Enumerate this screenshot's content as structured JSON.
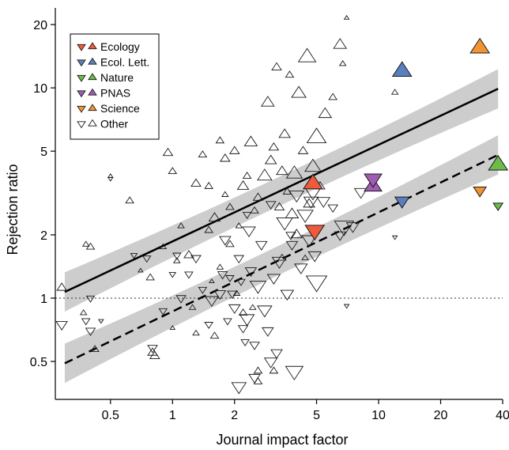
{
  "chart_data": {
    "type": "scatter",
    "title": "",
    "xlabel": "Journal impact factor",
    "ylabel": "Rejection ratio",
    "x_scale": "log",
    "y_scale": "log",
    "xlim": [
      0.27,
      40
    ],
    "ylim": [
      0.33,
      24
    ],
    "x_ticks": [
      {
        "value": 0.5,
        "label": "0.5"
      },
      {
        "value": 1,
        "label": "1"
      },
      {
        "value": 2,
        "label": "2"
      },
      {
        "value": 5,
        "label": "5"
      },
      {
        "value": 10,
        "label": "10"
      },
      {
        "value": 20,
        "label": "20"
      },
      {
        "value": 40,
        "label": "40"
      }
    ],
    "y_ticks": [
      {
        "value": 0.5,
        "label": "0.5"
      },
      {
        "value": 1,
        "label": "1"
      },
      {
        "value": 2,
        "label": "2"
      },
      {
        "value": 5,
        "label": "5"
      },
      {
        "value": 10,
        "label": "10"
      },
      {
        "value": 20,
        "label": "20"
      }
    ],
    "reference_line": {
      "y": 1,
      "style": "dotted"
    },
    "legend": {
      "placement": "top-left",
      "entries": [
        {
          "label": "Ecology",
          "color": "#f05a3c"
        },
        {
          "label": "Ecol. Lett.",
          "color": "#5b7fbd"
        },
        {
          "label": "Nature",
          "color": "#6dbb4a"
        },
        {
          "label": "PNAS",
          "color": "#a05bb5"
        },
        {
          "label": "Science",
          "color": "#f29433"
        },
        {
          "label": "Other",
          "color": "#ffffff"
        }
      ]
    },
    "fits": [
      {
        "marker": "up",
        "style": "solid",
        "x": [
          0.3,
          38
        ],
        "y": [
          1.07,
          9.9
        ],
        "band": 0.15
      },
      {
        "marker": "down",
        "style": "dashed",
        "x": [
          0.3,
          38
        ],
        "y": [
          0.49,
          4.8
        ],
        "band": 0.15
      }
    ],
    "highlighted_points": [
      {
        "journal": "Ecology",
        "marker": "up",
        "x": 4.8,
        "y": 3.5,
        "size": 12
      },
      {
        "journal": "Ecology",
        "marker": "down",
        "x": 4.9,
        "y": 2.1,
        "size": 12
      },
      {
        "journal": "Ecol. Lett.",
        "marker": "up",
        "x": 13,
        "y": 12,
        "size": 12
      },
      {
        "journal": "Ecol. Lett.",
        "marker": "down",
        "x": 13,
        "y": 2.9,
        "size": 9
      },
      {
        "journal": "Nature",
        "marker": "up",
        "x": 38,
        "y": 4.3,
        "size": 12
      },
      {
        "journal": "Nature",
        "marker": "down",
        "x": 38,
        "y": 2.75,
        "size": 6
      },
      {
        "journal": "PNAS",
        "marker": "up",
        "x": 9.4,
        "y": 3.4,
        "size": 11
      },
      {
        "journal": "PNAS",
        "marker": "down",
        "x": 9.4,
        "y": 3.7,
        "size": 11
      },
      {
        "journal": "Science",
        "marker": "up",
        "x": 31,
        "y": 15.5,
        "size": 12
      },
      {
        "journal": "Science",
        "marker": "down",
        "x": 31,
        "y": 3.25,
        "size": 8
      }
    ],
    "other_points": {
      "up": [
        [
          0.29,
          1.12,
          6
        ],
        [
          0.38,
          1.8,
          4
        ],
        [
          0.4,
          1.75,
          5
        ],
        [
          0.5,
          3.8,
          3
        ],
        [
          0.62,
          2.9,
          5
        ],
        [
          0.7,
          1.35,
          3
        ],
        [
          0.9,
          1.75,
          4
        ],
        [
          0.95,
          4.9,
          6
        ],
        [
          1.0,
          4.0,
          5
        ],
        [
          1.05,
          1.5,
          4
        ],
        [
          1.1,
          2.2,
          4
        ],
        [
          1.2,
          1.6,
          6
        ],
        [
          1.3,
          3.5,
          6
        ],
        [
          1.4,
          4.8,
          5
        ],
        [
          1.5,
          2.1,
          5
        ],
        [
          1.5,
          3.4,
          5
        ],
        [
          1.6,
          2.4,
          7
        ],
        [
          1.7,
          5.6,
          5
        ],
        [
          1.8,
          4.6,
          6
        ],
        [
          1.8,
          3.1,
          4
        ],
        [
          1.9,
          2.7,
          5
        ],
        [
          2.0,
          5.0,
          6
        ],
        [
          2.1,
          2.2,
          4
        ],
        [
          2.2,
          3.4,
          7
        ],
        [
          2.3,
          3.8,
          5
        ],
        [
          2.4,
          5.5,
          8
        ],
        [
          2.5,
          2.6,
          5
        ],
        [
          2.6,
          3.0,
          6
        ],
        [
          2.8,
          3.8,
          9
        ],
        [
          2.9,
          8.5,
          8
        ],
        [
          3.0,
          4.5,
          7
        ],
        [
          3.1,
          5.2,
          6
        ],
        [
          3.2,
          12.5,
          6
        ],
        [
          3.3,
          2.7,
          6
        ],
        [
          3.4,
          4.0,
          7
        ],
        [
          3.5,
          6.0,
          7
        ],
        [
          3.6,
          3.2,
          5
        ],
        [
          3.7,
          11.5,
          5
        ],
        [
          3.8,
          2.5,
          8
        ],
        [
          3.9,
          3.9,
          10
        ],
        [
          4.0,
          2.0,
          7
        ],
        [
          4.1,
          9.4,
          9
        ],
        [
          4.3,
          5.0,
          6
        ],
        [
          4.5,
          14.0,
          11
        ],
        [
          4.6,
          2.8,
          7
        ],
        [
          4.8,
          4.2,
          10
        ],
        [
          5.0,
          5.8,
          12
        ],
        [
          5.2,
          3.4,
          6
        ],
        [
          5.5,
          7.5,
          8
        ],
        [
          6.0,
          9.0,
          5
        ],
        [
          6.5,
          16.0,
          8
        ],
        [
          6.7,
          13.0,
          4
        ],
        [
          7.0,
          21.5,
          3
        ],
        [
          2.6,
          0.4,
          5
        ],
        [
          2.6,
          0.45,
          5
        ],
        [
          3.1,
          0.45,
          5
        ],
        [
          0.8,
          0.55,
          6
        ],
        [
          0.82,
          0.53,
          6
        ],
        [
          0.42,
          0.57,
          5
        ],
        [
          1.0,
          0.72,
          3
        ],
        [
          1.3,
          0.68,
          4
        ],
        [
          1.6,
          0.66,
          5
        ],
        [
          2.2,
          0.85,
          5
        ],
        [
          1.7,
          1.4,
          4
        ],
        [
          1.25,
          0.9,
          4
        ],
        [
          0.78,
          1.25,
          5
        ],
        [
          0.37,
          0.85,
          4
        ],
        [
          1.55,
          1.2,
          3
        ],
        [
          2.05,
          1.05,
          4
        ],
        [
          3.4,
          1.55,
          5
        ],
        [
          4.4,
          1.55,
          4
        ],
        [
          2.45,
          0.9,
          4
        ],
        [
          1.9,
          1.8,
          5
        ],
        [
          12,
          9.5,
          4
        ]
      ],
      "down": [
        [
          0.29,
          0.75,
          7
        ],
        [
          0.38,
          0.78,
          5
        ],
        [
          0.4,
          0.7,
          6
        ],
        [
          0.4,
          1.0,
          5
        ],
        [
          0.45,
          0.78,
          3
        ],
        [
          0.5,
          3.7,
          3
        ],
        [
          0.65,
          1.6,
          4
        ],
        [
          0.75,
          1.55,
          5
        ],
        [
          0.9,
          0.87,
          5
        ],
        [
          1.0,
          1.3,
          4
        ],
        [
          1.1,
          1.0,
          6
        ],
        [
          1.2,
          1.3,
          5
        ],
        [
          1.3,
          1.55,
          6
        ],
        [
          1.4,
          1.1,
          5
        ],
        [
          1.5,
          0.75,
          5
        ],
        [
          1.55,
          0.98,
          8
        ],
        [
          1.7,
          1.05,
          7
        ],
        [
          1.75,
          1.3,
          6
        ],
        [
          1.8,
          1.9,
          7
        ],
        [
          1.85,
          0.78,
          5
        ],
        [
          1.9,
          1.25,
          5
        ],
        [
          2.0,
          0.9,
          7
        ],
        [
          2.1,
          1.55,
          6
        ],
        [
          2.2,
          0.72,
          6
        ],
        [
          2.3,
          0.8,
          9
        ],
        [
          2.35,
          2.1,
          8
        ],
        [
          2.4,
          1.35,
          7
        ],
        [
          2.5,
          0.6,
          6
        ],
        [
          2.6,
          1.15,
          10
        ],
        [
          2.7,
          1.8,
          7
        ],
        [
          2.8,
          0.88,
          9
        ],
        [
          2.9,
          0.7,
          7
        ],
        [
          3.0,
          2.8,
          6
        ],
        [
          3.1,
          1.25,
          8
        ],
        [
          3.2,
          0.55,
          7
        ],
        [
          3.3,
          1.5,
          9
        ],
        [
          3.5,
          2.3,
          10
        ],
        [
          3.6,
          1.05,
          8
        ],
        [
          3.8,
          1.8,
          7
        ],
        [
          4.0,
          3.1,
          9
        ],
        [
          4.2,
          1.4,
          8
        ],
        [
          4.4,
          2.5,
          10
        ],
        [
          4.6,
          1.9,
          9
        ],
        [
          4.7,
          2.9,
          9
        ],
        [
          4.8,
          3.2,
          10
        ],
        [
          4.9,
          1.6,
          8
        ],
        [
          5.0,
          1.2,
          13
        ],
        [
          5.4,
          2.9,
          8
        ],
        [
          6.0,
          2.7,
          6
        ],
        [
          6.5,
          2.0,
          7
        ],
        [
          7.0,
          0.92,
          3
        ],
        [
          8.2,
          3.2,
          8
        ],
        [
          6.8,
          2.2,
          12
        ],
        [
          7.5,
          2.2,
          8
        ],
        [
          2.1,
          0.38,
          9
        ],
        [
          2.5,
          0.42,
          7
        ],
        [
          3.0,
          0.5,
          8
        ],
        [
          3.9,
          0.45,
          11
        ],
        [
          2.25,
          0.62,
          5
        ],
        [
          0.8,
          0.58,
          6
        ],
        [
          1.05,
          1.6,
          5
        ],
        [
          2.15,
          1.2,
          5
        ],
        [
          1.95,
          1.05,
          6
        ],
        [
          3.75,
          2.0,
          6
        ],
        [
          12,
          1.95,
          3
        ],
        [
          2.3,
          2.5,
          5
        ]
      ]
    }
  }
}
